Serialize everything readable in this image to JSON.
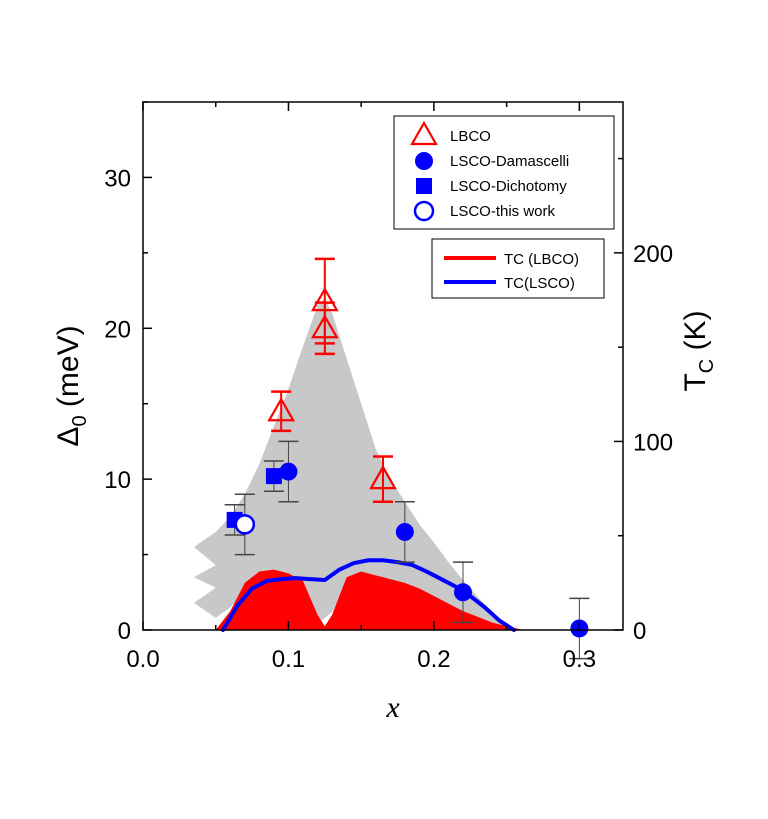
{
  "chart_data": {
    "type": "scatter",
    "xlabel": "x",
    "ylabel_left": {
      "main": "Δ",
      "sub": "0",
      "tail": " (meV)"
    },
    "ylabel_right": {
      "main": "T",
      "sub": "C",
      "tail": " (K)"
    },
    "xlim": [
      0.0,
      0.33
    ],
    "ylim_left": [
      0,
      35
    ],
    "ylim_right": [
      0,
      280
    ],
    "x_ticks": [
      "0.0",
      "0.1",
      "0.2",
      "0.3"
    ],
    "x_tick_values": [
      0.0,
      0.1,
      0.2,
      0.3
    ],
    "y_left_ticks": [
      "0",
      "10",
      "20",
      "30"
    ],
    "y_left_tick_values": [
      0,
      10,
      20,
      30
    ],
    "y_right_ticks": [
      "0",
      "100",
      "200"
    ],
    "y_right_tick_values": [
      0,
      100,
      200
    ],
    "grid": false,
    "legend_top": {
      "placement": "top-right",
      "entries": [
        "LBCO",
        "LSCO-Damascelli",
        "LSCO-Dichotomy",
        "LSCO-this work"
      ]
    },
    "legend_bottom": {
      "placement": "upper-right",
      "entries": [
        "TC (LBCO)",
        "TC(LSCO)"
      ]
    },
    "colors": {
      "red": "#ff0000",
      "blue": "#0000ff",
      "gray_band": "#c8c8c8",
      "errorbar": "#444444"
    },
    "series": [
      {
        "name": "LBCO",
        "marker": "open-triangle",
        "color": "#ff0000",
        "points": [
          {
            "x": 0.095,
            "y": 14.5,
            "err": 1.3
          },
          {
            "x": 0.125,
            "y": 21.8,
            "err": 2.8
          },
          {
            "x": 0.125,
            "y": 20.0,
            "err": 1.7
          },
          {
            "x": 0.165,
            "y": 10.0,
            "err": 1.5
          }
        ]
      },
      {
        "name": "LSCO-Damascelli",
        "marker": "filled-circle",
        "color": "#0000ff",
        "points": [
          {
            "x": 0.1,
            "y": 10.5,
            "err": 2.0
          },
          {
            "x": 0.18,
            "y": 6.5,
            "err": 2.0
          },
          {
            "x": 0.22,
            "y": 2.5,
            "err": 2.0
          },
          {
            "x": 0.3,
            "y": 0.1,
            "err": 2.0
          }
        ]
      },
      {
        "name": "LSCO-Dichotomy",
        "marker": "filled-square",
        "color": "#0000ff",
        "points": [
          {
            "x": 0.063,
            "y": 7.3,
            "err": 1.0
          },
          {
            "x": 0.09,
            "y": 10.2,
            "err": 1.0
          }
        ]
      },
      {
        "name": "LSCO-this work",
        "marker": "open-circle",
        "color": "#0000ff",
        "points": [
          {
            "x": 0.07,
            "y": 7.0,
            "err": 2.0
          }
        ]
      }
    ],
    "tc_lbco_area": {
      "name": "TC (LBCO)",
      "axis": "right",
      "x": [
        0.05,
        0.06,
        0.07,
        0.08,
        0.09,
        0.1,
        0.11,
        0.12,
        0.125,
        0.13,
        0.135,
        0.14,
        0.15,
        0.16,
        0.17,
        0.18,
        0.19,
        0.2,
        0.21,
        0.22,
        0.23,
        0.24,
        0.25,
        0.262
      ],
      "y": [
        0,
        10,
        25,
        31,
        32,
        30,
        26,
        8,
        2,
        8,
        18,
        28,
        31,
        29,
        27,
        25,
        22,
        18,
        14,
        10,
        7,
        4,
        2,
        0
      ]
    },
    "tc_lsco_line": {
      "name": "TC(LSCO)",
      "axis": "right",
      "x": [
        0.055,
        0.065,
        0.075,
        0.085,
        0.095,
        0.105,
        0.115,
        0.125,
        0.135,
        0.145,
        0.155,
        0.165,
        0.175,
        0.185,
        0.195,
        0.205,
        0.215,
        0.225,
        0.235,
        0.245,
        0.255
      ],
      "y": [
        0,
        13,
        22,
        26,
        27,
        27.5,
        27,
        26.5,
        32,
        35.5,
        37,
        37,
        36,
        34.5,
        31,
        27,
        23,
        18,
        12,
        5,
        0
      ]
    },
    "gray_band": {
      "axis": "left",
      "upper": {
        "x": [
          0.035,
          0.05,
          0.06,
          0.07,
          0.08,
          0.09,
          0.1,
          0.11,
          0.12,
          0.125,
          0.13,
          0.14,
          0.15,
          0.16,
          0.17,
          0.18,
          0.19,
          0.2,
          0.21,
          0.22,
          0.23,
          0.24,
          0.25
        ],
        "y": [
          5.5,
          6.5,
          7.5,
          9.0,
          11.0,
          13.5,
          16.0,
          18.8,
          21.5,
          22.0,
          21.0,
          18.0,
          15.0,
          12.0,
          10.0,
          8.5,
          7.0,
          5.8,
          4.5,
          3.3,
          2.2,
          1.2,
          0.3
        ]
      },
      "lower": {
        "x": [
          0.25,
          0.22,
          0.2,
          0.18,
          0.16,
          0.15,
          0.14,
          0.13,
          0.12,
          0.11,
          0.1,
          0.09,
          0.08,
          0.075,
          0.07,
          0.06,
          0.05,
          0.035,
          0.05,
          0.035,
          0.05,
          0.035
        ],
        "y": [
          0,
          0.3,
          0.8,
          1.5,
          2.5,
          3.5,
          2.8,
          1.2,
          0.4,
          0.8,
          1.8,
          3.0,
          3.2,
          3.2,
          2.5,
          1.5,
          0.8,
          1.8,
          2.8,
          3.5,
          4.3,
          5.5
        ]
      }
    }
  }
}
